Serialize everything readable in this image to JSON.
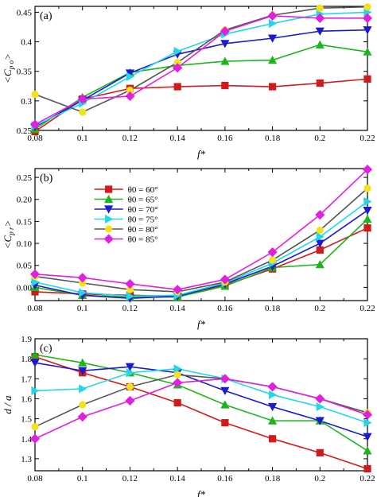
{
  "chart_data": [
    {
      "type": "line",
      "panel_label": "(a)",
      "xlabel": "f*",
      "ylabel": "<C_po>",
      "xlim": [
        0.08,
        0.22
      ],
      "ylim": [
        0.25,
        0.46
      ],
      "x_ticks": [
        "0.08",
        "0.1",
        "0.12",
        "0.14",
        "0.16",
        "0.18",
        "0.2",
        "0.22"
      ],
      "y_ticks": [
        "0.25",
        "0.3",
        "0.35",
        "0.4",
        "0.45"
      ],
      "x": [
        0.08,
        0.1,
        0.12,
        0.14,
        0.16,
        0.18,
        0.2,
        0.22
      ],
      "series": [
        {
          "name": "θ0 = 60°",
          "color": "#d11a1a",
          "marker": "square",
          "values": [
            0.248,
            0.303,
            0.321,
            0.324,
            0.326,
            0.324,
            0.33,
            0.337
          ]
        },
        {
          "name": "θ0 = 65°",
          "color": "#1db51d",
          "marker": "triangle-up",
          "values": [
            0.252,
            0.306,
            0.348,
            0.36,
            0.367,
            0.369,
            0.395,
            0.383
          ]
        },
        {
          "name": "θ0 = 70°",
          "color": "#1a1ad1",
          "marker": "triangle-down",
          "values": [
            0.256,
            0.301,
            0.347,
            0.379,
            0.397,
            0.406,
            0.418,
            0.42
          ]
        },
        {
          "name": "θ0 = 75°",
          "color": "#22d8e6",
          "marker": "triangle-right",
          "values": [
            0.258,
            0.296,
            0.341,
            0.384,
            0.413,
            0.431,
            0.447,
            0.45
          ]
        },
        {
          "name": "θ0 = 80°",
          "color": "#555555",
          "marker": "circle",
          "values": [
            0.311,
            0.281,
            0.318,
            0.365,
            0.42,
            0.445,
            0.457,
            0.459
          ]
        },
        {
          "name": "θ0 = 85°",
          "color": "#e020e0",
          "marker": "diamond",
          "values": [
            0.26,
            0.303,
            0.308,
            0.356,
            0.418,
            0.444,
            0.44,
            0.44
          ]
        }
      ],
      "extra_markers": [
        {
          "note": "yellow circle markers on θ0 = 80° series",
          "color": "#f2e21a"
        }
      ]
    },
    {
      "type": "line",
      "panel_label": "(b)",
      "xlabel": "f*",
      "ylabel": "<C_pr>",
      "xlim": [
        0.08,
        0.22
      ],
      "ylim": [
        -0.03,
        0.27
      ],
      "x_ticks": [
        "0.08",
        "0.1",
        "0.12",
        "0.14",
        "0.16",
        "0.18",
        "0.2",
        "0.22"
      ],
      "y_ticks": [
        "0.00",
        "0.05",
        "0.10",
        "0.15",
        "0.20",
        "0.25"
      ],
      "x": [
        0.08,
        0.1,
        0.12,
        0.14,
        0.16,
        0.18,
        0.2,
        0.22
      ],
      "legend_position": "upper-left inside",
      "series": [
        {
          "name": "θ0 = 60°",
          "color": "#d11a1a",
          "marker": "square",
          "values": [
            -0.01,
            -0.015,
            -0.018,
            -0.02,
            0.005,
            0.042,
            0.085,
            0.135
          ]
        },
        {
          "name": "θ0 = 65°",
          "color": "#1db51d",
          "marker": "triangle-up",
          "values": [
            0.0,
            -0.018,
            -0.022,
            -0.022,
            0.003,
            0.045,
            0.052,
            0.155
          ]
        },
        {
          "name": "θ0 = 70°",
          "color": "#1a1ad1",
          "marker": "triangle-down",
          "values": [
            0.005,
            -0.018,
            -0.025,
            -0.02,
            0.008,
            0.048,
            0.1,
            0.175
          ]
        },
        {
          "name": "θ0 = 75°",
          "color": "#22d8e6",
          "marker": "triangle-right",
          "values": [
            0.012,
            -0.012,
            -0.02,
            -0.018,
            0.01,
            0.055,
            0.115,
            0.195
          ]
        },
        {
          "name": "θ0 = 80°",
          "color": "#555555",
          "marker": "circle",
          "values": [
            0.025,
            0.01,
            -0.005,
            -0.01,
            0.012,
            0.062,
            0.13,
            0.225
          ]
        },
        {
          "name": "θ0 = 85°",
          "color": "#e020e0",
          "marker": "diamond",
          "values": [
            0.03,
            0.022,
            0.008,
            -0.005,
            0.018,
            0.08,
            0.165,
            0.268
          ]
        }
      ],
      "legend_labels": [
        "θ0 = 60°",
        "θ0 = 65°",
        "θ0 = 70°",
        "θ0 = 75°",
        "θ0 = 80°",
        "θ0 = 85°"
      ]
    },
    {
      "type": "line",
      "panel_label": "(c)",
      "xlabel": "f*",
      "ylabel": "d / a",
      "xlim": [
        0.08,
        0.22
      ],
      "ylim": [
        1.24,
        1.9
      ],
      "x_ticks": [
        "0.08",
        "0.1",
        "0.12",
        "0.14",
        "0.16",
        "0.18",
        "0.2",
        "0.22"
      ],
      "y_ticks": [
        "1.3",
        "1.4",
        "1.5",
        "1.6",
        "1.7",
        "1.8",
        "1.9"
      ],
      "x": [
        0.08,
        0.1,
        0.12,
        0.14,
        0.16,
        0.18,
        0.2,
        0.22
      ],
      "series": [
        {
          "name": "θ0 = 60°",
          "color": "#d11a1a",
          "marker": "square",
          "values": [
            1.81,
            1.73,
            1.66,
            1.58,
            1.48,
            1.4,
            1.33,
            1.25
          ]
        },
        {
          "name": "θ0 = 65°",
          "color": "#1db51d",
          "marker": "triangle-up",
          "values": [
            1.82,
            1.78,
            1.73,
            1.67,
            1.57,
            1.49,
            1.49,
            1.34
          ]
        },
        {
          "name": "θ0 = 70°",
          "color": "#1a1ad1",
          "marker": "triangle-down",
          "values": [
            1.78,
            1.74,
            1.76,
            1.73,
            1.64,
            1.56,
            1.49,
            1.41
          ]
        },
        {
          "name": "θ0 = 75°",
          "color": "#22d8e6",
          "marker": "triangle-right",
          "values": [
            1.64,
            1.65,
            1.73,
            1.75,
            1.7,
            1.62,
            1.56,
            1.48
          ]
        },
        {
          "name": "θ0 = 80°",
          "color": "#555555",
          "marker": "circle",
          "values": [
            1.46,
            1.57,
            1.66,
            1.72,
            1.7,
            1.66,
            1.6,
            1.53
          ]
        },
        {
          "name": "θ0 = 85°",
          "color": "#e020e0",
          "marker": "diamond",
          "values": [
            1.4,
            1.51,
            1.59,
            1.68,
            1.7,
            1.66,
            1.6,
            1.52
          ]
        }
      ]
    }
  ],
  "marker_fill_override": {
    "θ0 = 80°": "#f2e21a"
  }
}
